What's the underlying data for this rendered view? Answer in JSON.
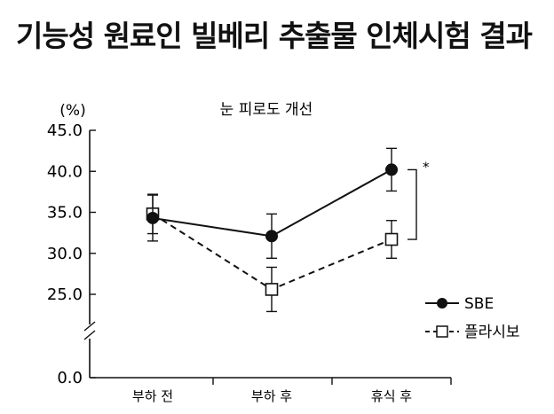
{
  "page_title": "기능성 원료인 빌베리 추출물 인체시험 결과",
  "chart_data": {
    "type": "line",
    "title": "눈 피로도 개선",
    "ylabel": "(%)",
    "categories": [
      "부하 전",
      "부하 후",
      "휴식 후"
    ],
    "y_ticks": [
      "0.0",
      "25.0",
      "30.0",
      "35.0",
      "40.0",
      "45.0"
    ],
    "ylim": [
      25,
      45
    ],
    "axis_break": true,
    "series": [
      {
        "name": "SBE",
        "values": [
          34.3,
          32.1,
          40.2
        ],
        "error": [
          2.8,
          2.7,
          2.6
        ],
        "marker": "filled-circle",
        "line": "solid",
        "color": "#111111"
      },
      {
        "name": "플라시보",
        "values": [
          34.8,
          25.6,
          31.7
        ],
        "error": [
          2.4,
          2.7,
          2.3
        ],
        "marker": "open-square",
        "line": "dashed",
        "color": "#111111"
      }
    ],
    "annotation": "*",
    "legend_position": "right"
  }
}
